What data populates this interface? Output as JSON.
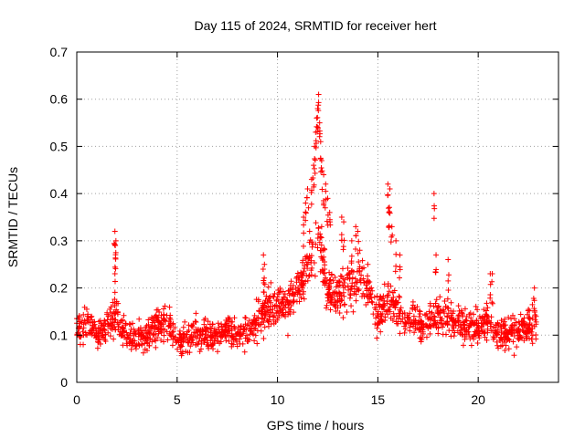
{
  "chart_data": {
    "type": "scatter",
    "title": "Day 115 of 2024, SRMTID for receiver hert",
    "xlabel": "GPS time / hours",
    "ylabel": "SRMTID / TECUs",
    "xlim": [
      0,
      24
    ],
    "ylim": [
      0,
      0.7
    ],
    "x_ticks": [
      0,
      5,
      10,
      15,
      20
    ],
    "y_ticks": [
      0,
      0.1,
      0.2,
      0.3,
      0.4,
      0.5,
      0.6,
      0.7
    ],
    "x_tick_labels": [
      "0",
      "5",
      "10",
      "15",
      "20"
    ],
    "y_tick_labels": [
      "0",
      "0.1",
      "0.2",
      "0.3",
      "0.4",
      "0.5",
      "0.6",
      "0.7"
    ],
    "grid": true,
    "marker": "plus",
    "color": "#ff0000",
    "series": [
      {
        "name": "hert",
        "trend": [
          [
            0.0,
            0.11
          ],
          [
            0.5,
            0.13
          ],
          [
            1.0,
            0.1
          ],
          [
            1.5,
            0.12
          ],
          [
            2.0,
            0.14
          ],
          [
            2.5,
            0.1
          ],
          [
            3.0,
            0.09
          ],
          [
            3.5,
            0.1
          ],
          [
            4.0,
            0.12
          ],
          [
            4.5,
            0.13
          ],
          [
            5.0,
            0.09
          ],
          [
            5.5,
            0.1
          ],
          [
            6.0,
            0.1
          ],
          [
            6.5,
            0.1
          ],
          [
            7.0,
            0.1
          ],
          [
            7.5,
            0.11
          ],
          [
            8.0,
            0.1
          ],
          [
            8.5,
            0.11
          ],
          [
            9.0,
            0.13
          ],
          [
            9.5,
            0.15
          ],
          [
            10.0,
            0.16
          ],
          [
            10.5,
            0.17
          ],
          [
            11.0,
            0.2
          ],
          [
            11.5,
            0.24
          ],
          [
            12.0,
            0.3
          ],
          [
            12.5,
            0.2
          ],
          [
            13.0,
            0.18
          ],
          [
            13.5,
            0.2
          ],
          [
            14.0,
            0.22
          ],
          [
            14.5,
            0.2
          ],
          [
            15.0,
            0.14
          ],
          [
            15.5,
            0.18
          ],
          [
            16.0,
            0.14
          ],
          [
            16.5,
            0.13
          ],
          [
            17.0,
            0.12
          ],
          [
            17.5,
            0.13
          ],
          [
            18.0,
            0.14
          ],
          [
            18.5,
            0.14
          ],
          [
            19.0,
            0.12
          ],
          [
            19.5,
            0.12
          ],
          [
            20.0,
            0.11
          ],
          [
            20.5,
            0.13
          ],
          [
            21.0,
            0.1
          ],
          [
            21.5,
            0.1
          ],
          [
            22.0,
            0.11
          ],
          [
            22.5,
            0.12
          ],
          [
            22.9,
            0.13
          ]
        ],
        "spikes": [
          [
            1.9,
            0.32
          ],
          [
            1.95,
            0.3
          ],
          [
            1.92,
            0.29
          ],
          [
            1.9,
            0.23
          ],
          [
            9.3,
            0.27
          ],
          [
            9.35,
            0.25
          ],
          [
            11.3,
            0.35
          ],
          [
            11.4,
            0.38
          ],
          [
            11.5,
            0.41
          ],
          [
            11.7,
            0.43
          ],
          [
            11.8,
            0.46
          ],
          [
            11.85,
            0.5
          ],
          [
            11.9,
            0.53
          ],
          [
            11.95,
            0.56
          ],
          [
            12.0,
            0.58
          ],
          [
            12.05,
            0.61
          ],
          [
            12.1,
            0.55
          ],
          [
            12.15,
            0.51
          ],
          [
            12.2,
            0.47
          ],
          [
            12.3,
            0.44
          ],
          [
            12.4,
            0.42
          ],
          [
            12.5,
            0.39
          ],
          [
            12.6,
            0.36
          ],
          [
            12.2,
            0.33
          ],
          [
            11.6,
            0.32
          ],
          [
            13.2,
            0.35
          ],
          [
            13.3,
            0.34
          ],
          [
            13.7,
            0.3
          ],
          [
            13.9,
            0.33
          ],
          [
            14.0,
            0.32
          ],
          [
            14.1,
            0.28
          ],
          [
            14.5,
            0.25
          ],
          [
            15.5,
            0.42
          ],
          [
            15.6,
            0.41
          ],
          [
            15.55,
            0.36
          ],
          [
            15.7,
            0.33
          ],
          [
            15.9,
            0.3
          ],
          [
            16.1,
            0.27
          ],
          [
            17.8,
            0.4
          ],
          [
            17.9,
            0.27
          ],
          [
            18.5,
            0.26
          ],
          [
            20.6,
            0.23
          ],
          [
            20.7,
            0.23
          ],
          [
            22.8,
            0.2
          ]
        ]
      }
    ]
  }
}
